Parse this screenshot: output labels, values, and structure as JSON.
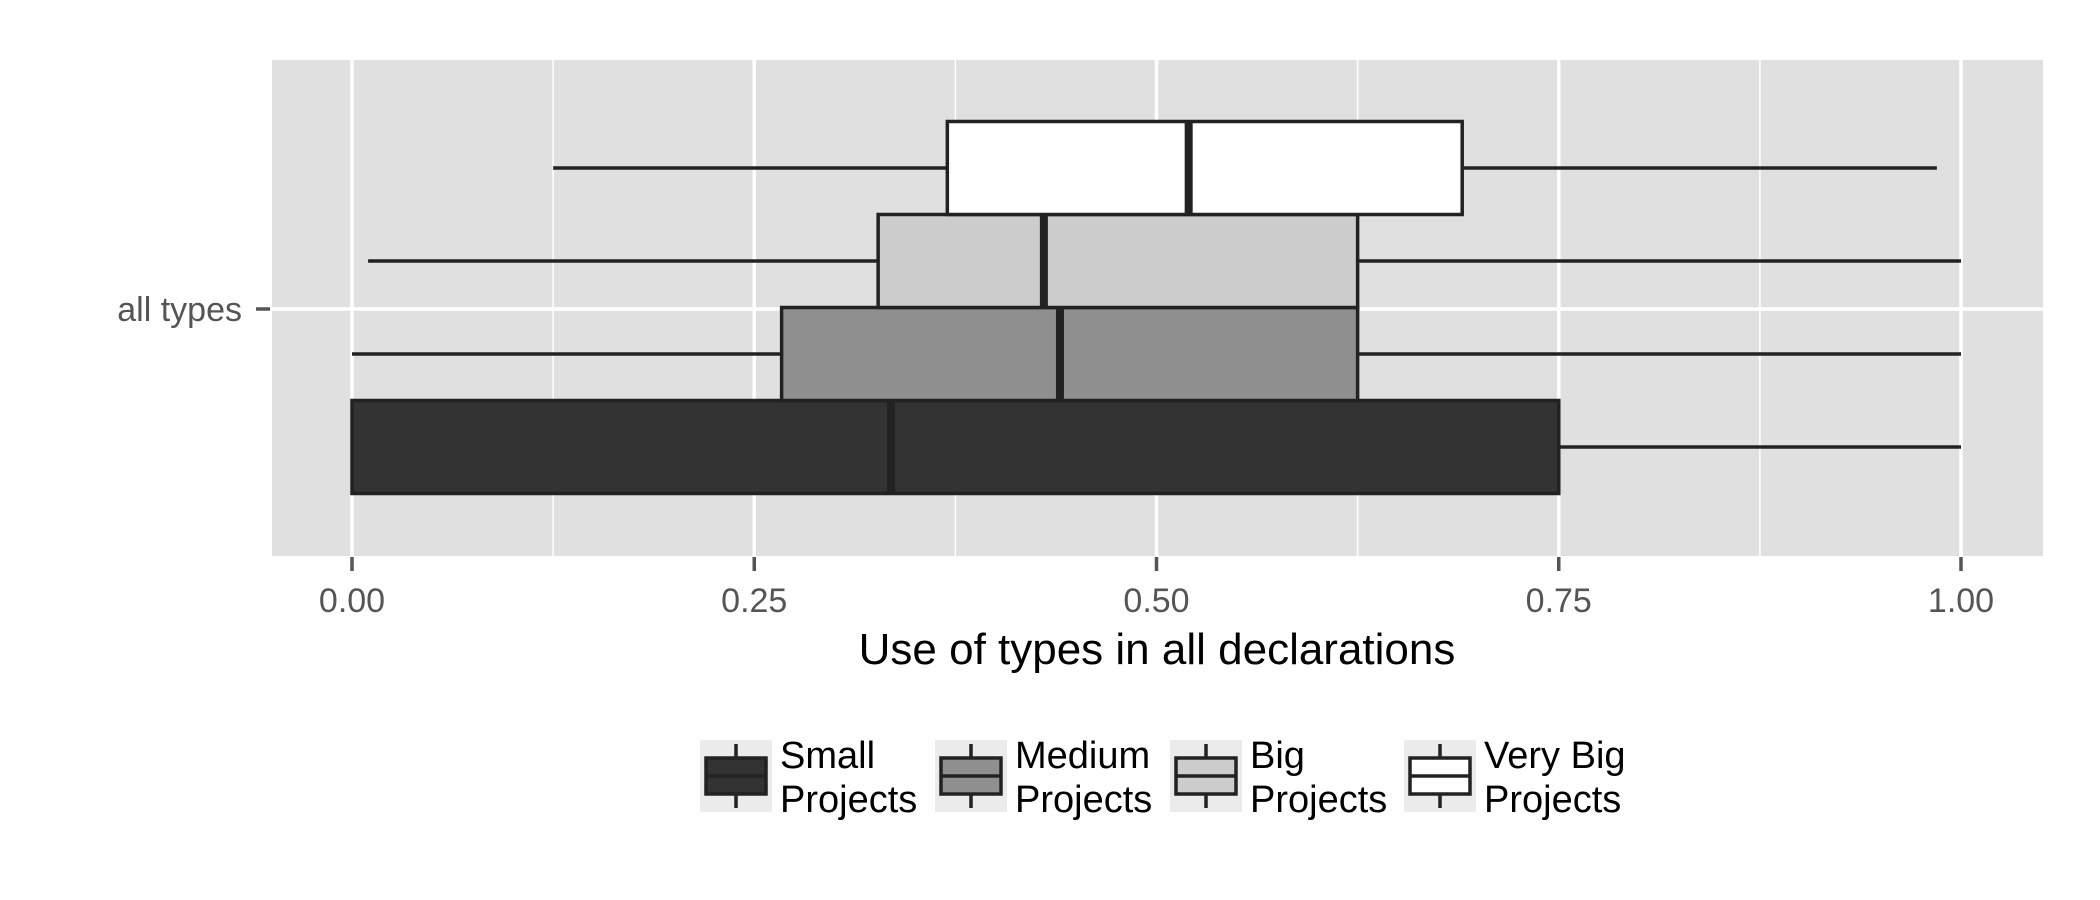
{
  "chart_data": {
    "type": "boxplot",
    "orientation": "horizontal",
    "categories": [
      "all types"
    ],
    "xlabel": "Use of types in all declarations",
    "ylabel": "",
    "xlim": [
      -0.1,
      2.1
    ],
    "xticks": [
      0.0,
      0.25,
      0.5,
      0.75,
      1.0
    ],
    "xtick_labels": [
      "0.00",
      "0.25",
      "0.50",
      "0.75",
      "1.00"
    ],
    "grid": true,
    "legend_position": "bottom",
    "series": [
      {
        "name": "Small Projects",
        "legend_lines": [
          "Small",
          "Projects"
        ],
        "fill": "#333333",
        "whisker_low": 0.0,
        "q1": 0.0,
        "median": 0.335,
        "q3": 0.75,
        "whisker_high": 1.0
      },
      {
        "name": "Medium Projects",
        "legend_lines": [
          "Medium",
          "Projects"
        ],
        "fill": "#8f8f8f",
        "whisker_low": 0.0,
        "q1": 0.267,
        "median": 0.44,
        "q3": 0.625,
        "whisker_high": 1.0
      },
      {
        "name": "Big Projects",
        "legend_lines": [
          "Big",
          "Projects"
        ],
        "fill": "#cccccc",
        "whisker_low": 0.01,
        "q1": 0.327,
        "median": 0.43,
        "q3": 0.625,
        "whisker_high": 1.0
      },
      {
        "name": "Very Big Projects",
        "legend_lines": [
          "Very Big",
          "Projects"
        ],
        "fill": "#ffffff",
        "whisker_low": 0.125,
        "q1": 0.37,
        "median": 0.52,
        "q3": 0.69,
        "whisker_high": 0.985
      }
    ]
  },
  "colors": {
    "panel_background": "#e0e0e0",
    "grid_line": "#ffffff",
    "box_outline": "#222222",
    "legend_key_background": "#ebebeb"
  }
}
